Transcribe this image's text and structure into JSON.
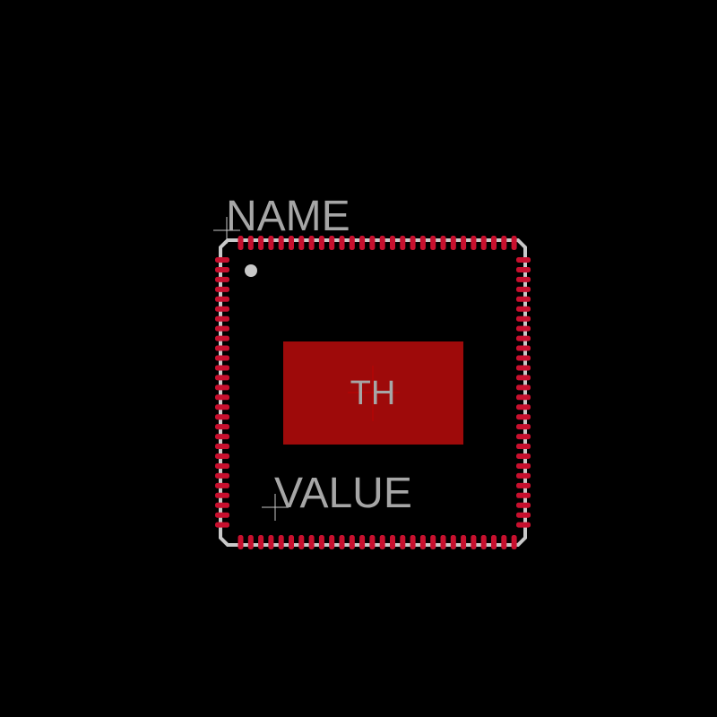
{
  "footprint": {
    "name_label": "NAME",
    "value_label": "VALUE",
    "thermal_label": "TH",
    "pins_per_side": 28,
    "outline_color": "#c8c8c8",
    "pad_color": "#c8102e",
    "thermal_pad_color": "#9e0a0a",
    "label_color": "#a6a6a6",
    "origin_cross_color": "#cc0000"
  }
}
